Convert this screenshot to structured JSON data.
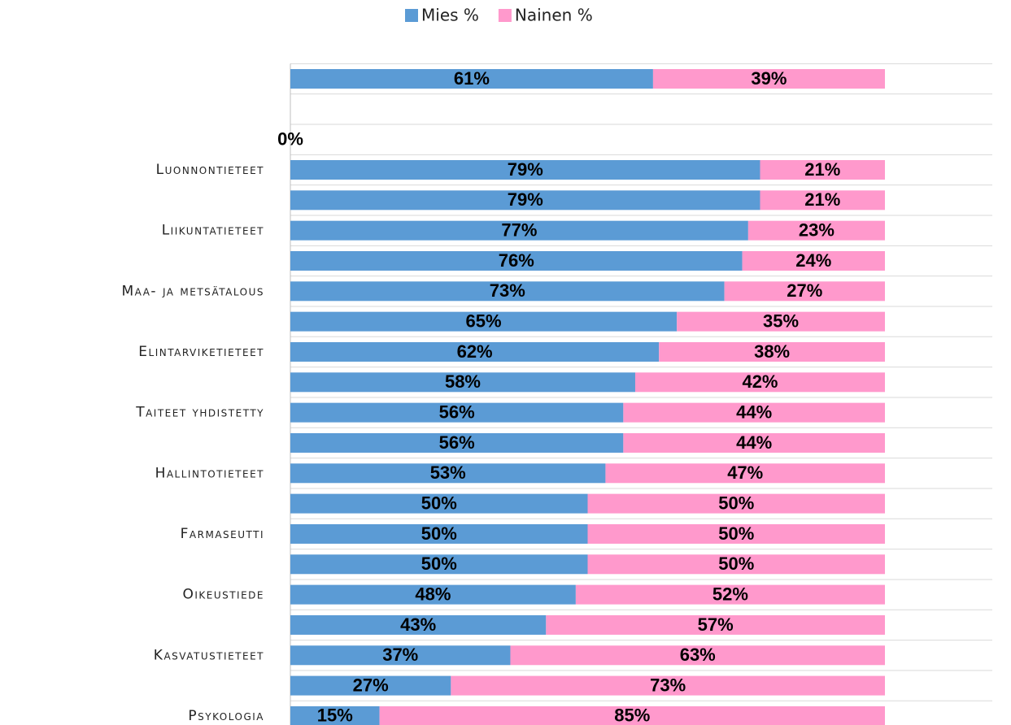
{
  "chart_data": {
    "type": "stacked-barh",
    "categories": [
      null,
      null,
      null,
      "Luonnontieteet",
      null,
      "Liikuntatieteet",
      null,
      "Maa- ja metsätalous",
      null,
      "Elintarviketieteet",
      null,
      "Taiteet yhdistetty",
      null,
      "Hallintotieteet",
      null,
      "Farmaseutti",
      null,
      "Oikeustiede",
      null,
      "Kasvatustieteet",
      null,
      "Psykologia"
    ],
    "series": [
      {
        "name": "Mies %",
        "color": "#5b9bd5",
        "values": [
          61,
          null,
          0,
          79,
          79,
          77,
          76,
          73,
          65,
          62,
          58,
          56,
          56,
          53,
          50,
          50,
          50,
          48,
          43,
          37,
          27,
          15
        ],
        "value_labels": [
          "61%",
          null,
          "0%",
          "79%",
          "79%",
          "77%",
          "76%",
          "73%",
          "65%",
          "62%",
          "58%",
          "56%",
          "56%",
          "53%",
          "50%",
          "50%",
          "50%",
          "48%",
          "43%",
          "37%",
          "27%",
          "15%"
        ]
      },
      {
        "name": "Nainen %",
        "color": "#ff99cc",
        "values": [
          39,
          null,
          null,
          21,
          21,
          23,
          24,
          27,
          35,
          38,
          42,
          44,
          44,
          47,
          50,
          50,
          50,
          52,
          57,
          63,
          73,
          85
        ],
        "value_labels": [
          "39%",
          null,
          null,
          "21%",
          "21%",
          "23%",
          "24%",
          "27%",
          "35%",
          "38%",
          "42%",
          "44%",
          "44%",
          "47%",
          "50%",
          "50%",
          "50%",
          "52%",
          "57%",
          "63%",
          "73%",
          "85%"
        ]
      }
    ],
    "xlim": [
      0,
      100
    ],
    "legend": "top"
  }
}
